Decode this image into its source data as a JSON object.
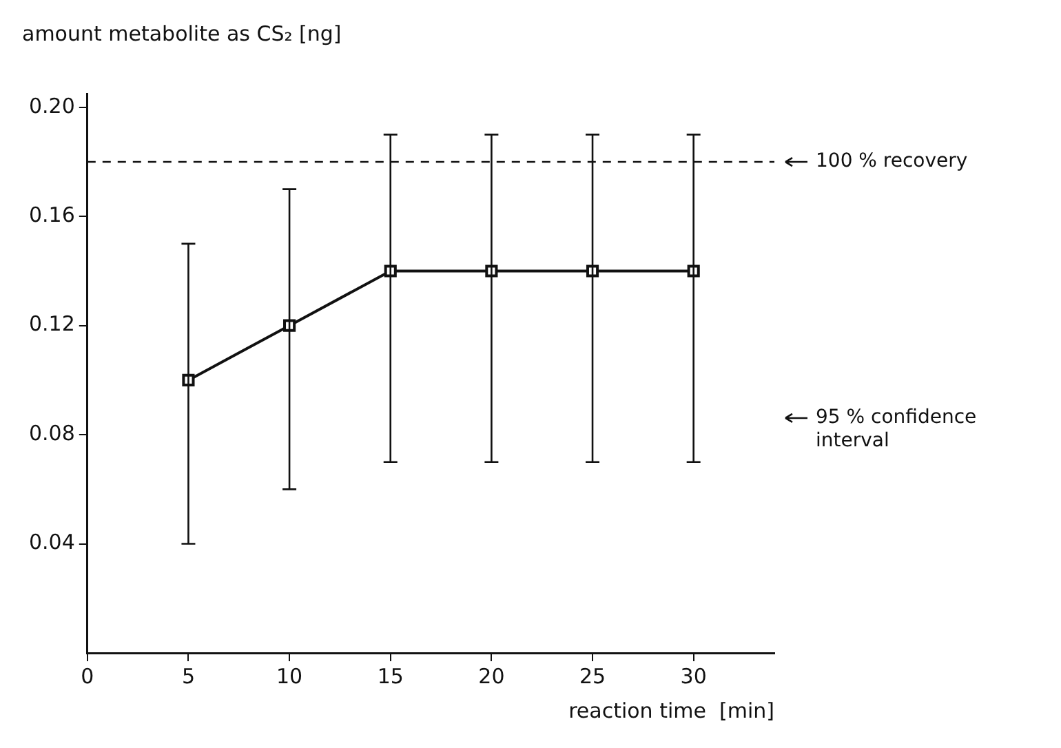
{
  "chart_data": {
    "type": "line",
    "ylabel": "amount metabolite as CS₂ [ng]",
    "xlabel": "reaction time  [min]",
    "x": [
      5,
      10,
      15,
      20,
      25,
      30
    ],
    "series": [
      {
        "color": "#111111",
        "values": [
          0.1,
          0.12,
          0.14,
          0.14,
          0.14,
          0.14
        ],
        "errors": [
          [
            0.04,
            0.15
          ],
          [
            0.06,
            0.17
          ],
          [
            0.07,
            0.19
          ],
          [
            0.07,
            0.19
          ],
          [
            0.07,
            0.19
          ],
          [
            0.07,
            0.19
          ]
        ]
      }
    ],
    "xlim": [
      0,
      34
    ],
    "xticks": [
      0,
      5,
      10,
      15,
      20,
      25,
      30
    ],
    "ylim": [
      0,
      0.205
    ],
    "yticks": [
      0.04,
      0.08,
      0.12,
      0.16,
      {
        "value": 0.2,
        "label": "0.20"
      }
    ],
    "ref_lines": [
      {
        "axis": "y",
        "value": 0.18,
        "label": "100 % recovery",
        "line_style": "dashed",
        "color": "#111111"
      }
    ],
    "annotations": [
      "95 % confidence interval"
    ],
    "marker": "square",
    "line_style": "solid",
    "grid": false,
    "legend": false
  }
}
